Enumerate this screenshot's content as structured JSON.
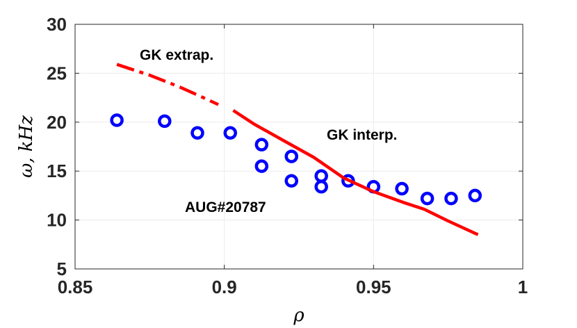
{
  "chart_data": {
    "type": "scatter",
    "xlabel": "ρ",
    "ylabel": "ω, kHz",
    "xlim": [
      0.85,
      1.0
    ],
    "ylim": [
      5,
      30
    ],
    "x_ticks": [
      "0.85",
      "0.9",
      "0.95",
      "1"
    ],
    "y_ticks": [
      "5",
      "10",
      "15",
      "20",
      "25",
      "30"
    ],
    "grid": true,
    "annotations": [
      "GK extrap.",
      "GK interp.",
      "AUG#20787"
    ],
    "colors": {
      "points": "#0000ff",
      "lines": "#ff0000",
      "axes": "#262626",
      "grid": "#ebebeb"
    },
    "series": [
      {
        "kind": "points",
        "x": [
          0.864,
          0.88,
          0.891,
          0.902,
          0.9125,
          0.9125,
          0.9225,
          0.9225,
          0.9325,
          0.9325,
          0.9415,
          0.95,
          0.9595,
          0.968,
          0.976,
          0.984
        ],
        "y": [
          20.2,
          20.1,
          18.9,
          18.9,
          17.7,
          15.5,
          16.5,
          14.0,
          14.5,
          13.4,
          14.0,
          13.4,
          13.2,
          12.2,
          12.2,
          12.5
        ]
      },
      {
        "kind": "dash-dot-line",
        "x": [
          0.864,
          0.875,
          0.885,
          0.893,
          0.898
        ],
        "y": [
          25.9,
          24.8,
          23.6,
          22.5,
          21.8
        ]
      },
      {
        "kind": "solid-line",
        "x": [
          0.903,
          0.91,
          0.92,
          0.93,
          0.94,
          0.95,
          0.96,
          0.967,
          0.975,
          0.985
        ],
        "y": [
          21.2,
          19.8,
          18.1,
          16.4,
          14.3,
          12.9,
          11.8,
          11.1,
          9.9,
          8.5
        ]
      }
    ]
  }
}
